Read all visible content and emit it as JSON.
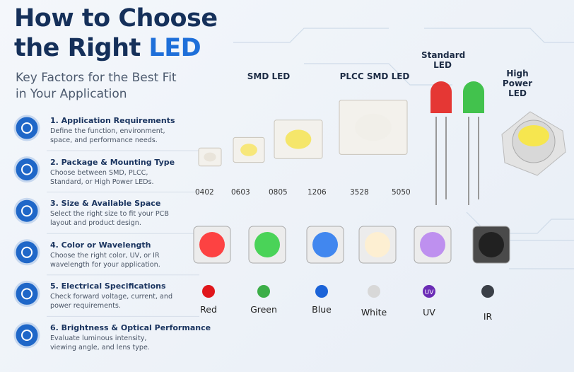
{
  "header": {
    "title_line1": "How to Choose",
    "title_line2": "the Right",
    "title_highlight": "LED",
    "subtitle_line1": "Key Factors for the Best Fit",
    "subtitle_line2": "in Your Application"
  },
  "factors": [
    {
      "title": "1. Application Requirements",
      "desc": "Define the function, environment, space, and performance needs."
    },
    {
      "title": "2. Package & Mounting Type",
      "desc": "Choose between SMD, PLCC, Standard, or High Power LEDs."
    },
    {
      "title": "3. Size & Available Space",
      "desc": "Select the right size to fit your PCB layout and product design."
    },
    {
      "title": "4. Color or Wavelength",
      "desc": "Choose the right color, UV, or IR wavelength for your application."
    },
    {
      "title": "5. Electrical Specifications",
      "desc": "Check forward voltage, current, and power requirements."
    },
    {
      "title": "6. Brightness & Optical Performance",
      "desc": "Evaluate luminous intensity, viewing angle, and lens type."
    }
  ],
  "packages": {
    "smd": "SMD LED",
    "plcc": "PLCC SMD LED",
    "standard": "Standard LED",
    "high_power": "High Power LED"
  },
  "sizes": [
    "0402",
    "0603",
    "0805",
    "1206",
    "3528",
    "5050"
  ],
  "colors": [
    "Red",
    "Green",
    "Blue",
    "White",
    "UV",
    "IR"
  ],
  "uv_badge": "UV"
}
